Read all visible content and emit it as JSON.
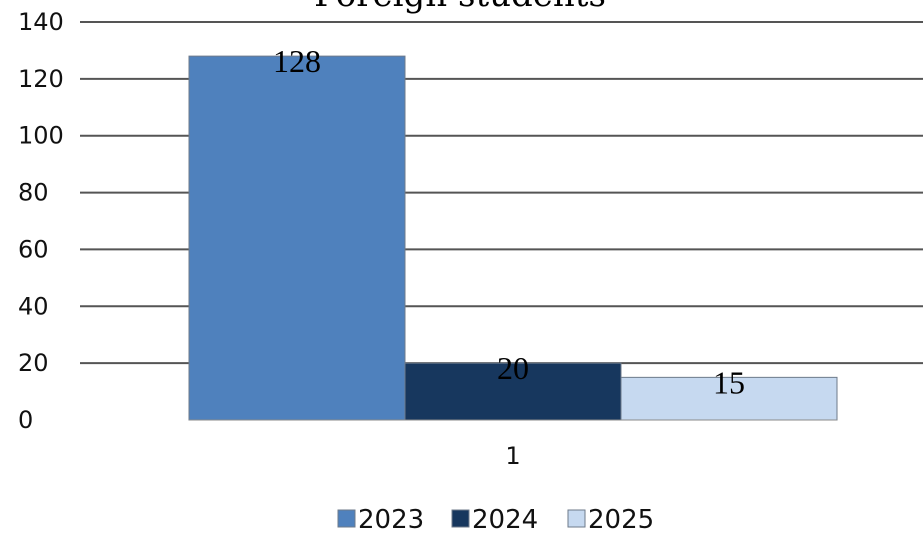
{
  "chart_data": {
    "type": "bar",
    "title": "Foreign students",
    "xlabel": "",
    "ylabel": "",
    "categories": [
      "1"
    ],
    "ylim": [
      0,
      140
    ],
    "yticks": [
      0,
      20,
      40,
      60,
      80,
      100,
      120,
      140
    ],
    "grid": true,
    "legend": "bottom",
    "series": [
      {
        "name": "2023",
        "values": [
          128
        ],
        "color": "#4f81bd"
      },
      {
        "name": "2024",
        "values": [
          20
        ],
        "color": "#17375e"
      },
      {
        "name": "2025",
        "values": [
          15
        ],
        "color": "#c6d9f0"
      }
    ]
  }
}
